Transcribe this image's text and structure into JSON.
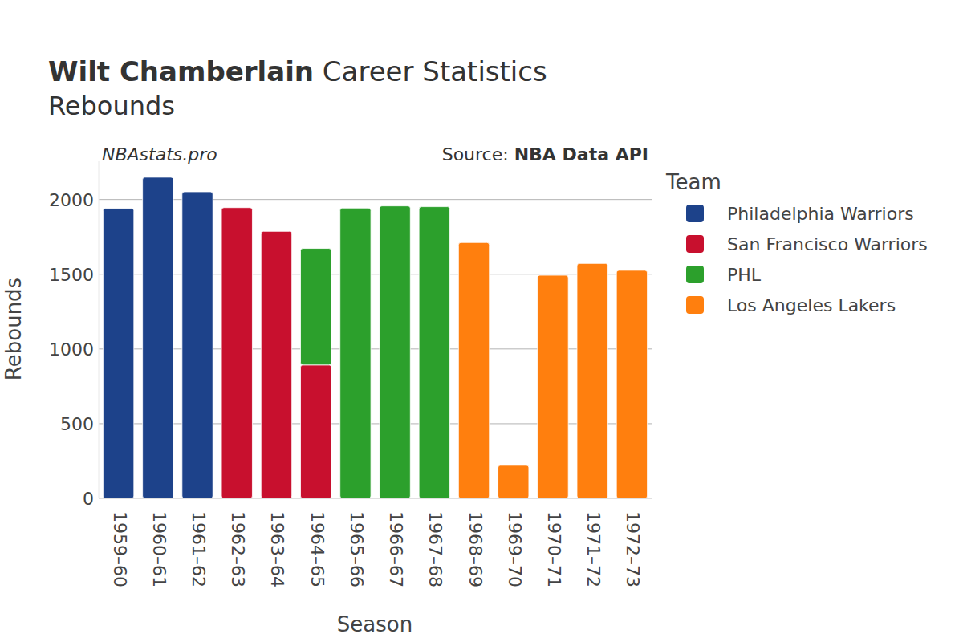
{
  "chart_data": {
    "type": "bar",
    "title": "Wilt Chamberlain",
    "title_suffix": "Career Statistics",
    "subtitle": "Rebounds",
    "annotations": [
      "NBAstats.pro"
    ],
    "source_label": "Source:",
    "source": "NBA Data API",
    "x_label": "Season",
    "y_label": "Rebounds",
    "legend_title": "Team",
    "legend": "right",
    "stacked": true,
    "grid": true,
    "categories": [
      "1959–60",
      "1960–61",
      "1961–62",
      "1962–63",
      "1963–64",
      "1964–65",
      "1965–66",
      "1966–67",
      "1967–68",
      "1968–69",
      "1969–70",
      "1970–71",
      "1971–72",
      "1972–73"
    ],
    "series": [
      {
        "name": "Philadelphia Warriors",
        "color": "#1d428a",
        "values": [
          1941,
          2149,
          2052,
          null,
          null,
          null,
          null,
          null,
          null,
          null,
          null,
          null,
          null,
          null
        ]
      },
      {
        "name": "San Francisco Warriors",
        "color": "#c8102e",
        "values": [
          null,
          null,
          null,
          1946,
          1787,
          893,
          null,
          null,
          null,
          null,
          null,
          null,
          null,
          null
        ]
      },
      {
        "name": "PHL",
        "color": "#2ca02c",
        "values": [
          null,
          null,
          null,
          null,
          null,
          780,
          1943,
          1957,
          1952,
          null,
          null,
          null,
          null,
          null
        ]
      },
      {
        "name": "Los Angeles Lakers",
        "color": "#ff7f0e",
        "values": [
          null,
          null,
          null,
          null,
          null,
          null,
          null,
          null,
          null,
          1712,
          221,
          1493,
          1572,
          1526
        ]
      }
    ],
    "ylim": [
      0,
      2256
    ],
    "yticks": [
      0,
      500,
      1000,
      1500,
      2000
    ]
  }
}
